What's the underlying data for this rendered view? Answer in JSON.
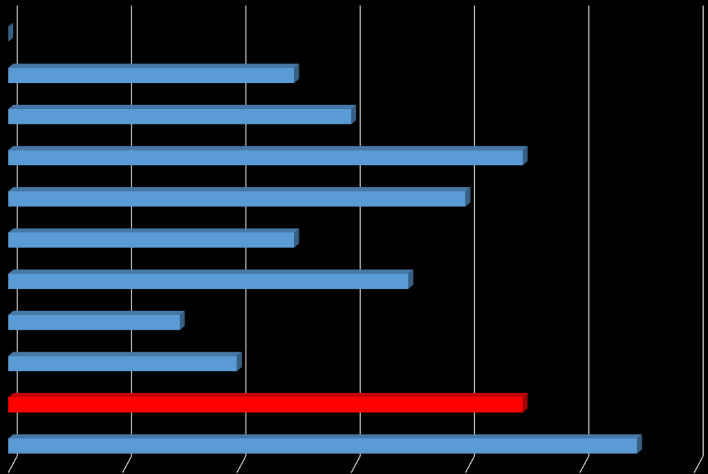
{
  "chart_data": {
    "type": "bar",
    "orientation": "horizontal",
    "categories": [
      null,
      null,
      null,
      null,
      null,
      null,
      null,
      null,
      null,
      null,
      null
    ],
    "values": [
      0,
      2.5,
      3,
      4.5,
      4,
      2.5,
      3.5,
      1.5,
      2,
      4.5,
      5.5
    ],
    "colors": [
      "#5b9bd5",
      "#5b9bd5",
      "#5b9bd5",
      "#5b9bd5",
      "#5b9bd5",
      "#5b9bd5",
      "#5b9bd5",
      "#5b9bd5",
      "#5b9bd5",
      "#ff0000",
      "#5b9bd5"
    ],
    "xlim": [
      0,
      6
    ],
    "xticks": [
      0,
      1,
      2,
      3,
      4,
      5,
      6
    ],
    "grid": true
  }
}
